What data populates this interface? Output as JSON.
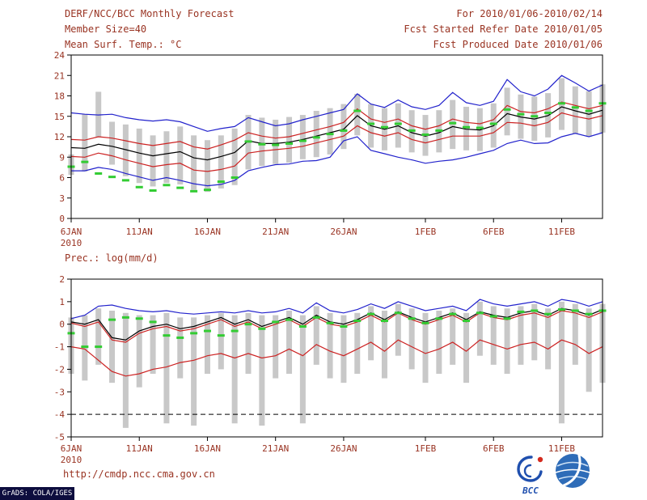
{
  "header": {
    "title_left": "DERF/NCC/BCC Monthly Forecast",
    "period_right": "For 2010/01/06-2010/02/14",
    "member_size": "Member Size=40",
    "refer_date": "Fcst Started Refer Date 2010/01/05",
    "produced_date": "Fcst Produced Date 2010/01/06"
  },
  "footer": {
    "url": "http://cmdp.ncc.cma.gov.cn",
    "grads_stamp": "GrADS: COLA/IGES",
    "bcc_label": "BCC"
  },
  "colors": {
    "annotation": "#993322",
    "frame": "#000000",
    "bar": "#c8c8c8",
    "blue": "#2222cc",
    "red": "#cc2222",
    "black": "#000000",
    "green": "#33cc33",
    "grads_bg": "#0d0d3e",
    "logo_blue": "#1f4fae",
    "logo_red": "#d42a1e"
  },
  "chart_data": [
    {
      "type": "line",
      "title": "Mean Surf. Temp.: °C",
      "ylim": [
        0,
        24
      ],
      "yticks": [
        0,
        3,
        6,
        9,
        12,
        15,
        18,
        21,
        24
      ],
      "xticks": [
        {
          "day": 0,
          "label": "6JAN",
          "sub": "2010"
        },
        {
          "day": 5,
          "label": "11JAN"
        },
        {
          "day": 10,
          "label": "16JAN"
        },
        {
          "day": 15,
          "label": "21JAN"
        },
        {
          "day": 20,
          "label": "26JAN"
        },
        {
          "day": 26,
          "label": "1FEB"
        },
        {
          "day": 31,
          "label": "6FEB"
        },
        {
          "day": 36,
          "label": "11FEB"
        }
      ],
      "bars": [
        [
          6.4,
          9.4
        ],
        [
          6.9,
          15.3
        ],
        [
          11.9,
          18.6
        ],
        [
          7.9,
          14.2
        ],
        [
          6.2,
          13.8
        ],
        [
          5.2,
          13.2
        ],
        [
          4.7,
          12.2
        ],
        [
          5.2,
          12.8
        ],
        [
          5.0,
          13.5
        ],
        [
          4.2,
          12.2
        ],
        [
          3.9,
          11.5
        ],
        [
          4.4,
          12.2
        ],
        [
          4.9,
          13.2
        ],
        [
          7.2,
          15.2
        ],
        [
          7.7,
          14.8
        ],
        [
          8.0,
          14.5
        ],
        [
          8.2,
          14.9
        ],
        [
          8.7,
          15.2
        ],
        [
          9.0,
          15.8
        ],
        [
          9.4,
          16.2
        ],
        [
          10.2,
          16.8
        ],
        [
          12.2,
          18.3
        ],
        [
          10.4,
          16.8
        ],
        [
          10.0,
          16.2
        ],
        [
          10.4,
          16.9
        ],
        [
          9.7,
          15.9
        ],
        [
          9.2,
          15.2
        ],
        [
          9.7,
          15.9
        ],
        [
          10.2,
          17.4
        ],
        [
          10.0,
          16.4
        ],
        [
          9.9,
          16.2
        ],
        [
          10.4,
          16.9
        ],
        [
          12.2,
          19.2
        ],
        [
          11.7,
          18.2
        ],
        [
          11.4,
          17.9
        ],
        [
          11.9,
          18.4
        ],
        [
          13.0,
          20.6
        ],
        [
          12.4,
          19.4
        ],
        [
          12.0,
          18.7
        ],
        [
          12.6,
          19.7
        ]
      ],
      "series": [
        {
          "name": "ensemble-max",
          "color": "#2222cc",
          "values": [
            15.5,
            15.3,
            15.2,
            15.3,
            14.8,
            14.5,
            14.3,
            14.5,
            14.2,
            13.5,
            12.8,
            13.2,
            13.5,
            14.8,
            14.2,
            13.6,
            13.9,
            14.5,
            15.0,
            15.5,
            16.0,
            18.3,
            16.8,
            16.3,
            17.4,
            16.4,
            16.0,
            16.6,
            18.5,
            17.0,
            16.6,
            17.2,
            20.4,
            18.6,
            18.0,
            19.0,
            21.0,
            19.9,
            18.7,
            19.6
          ]
        },
        {
          "name": "ensemble-min",
          "color": "#2222cc",
          "values": [
            7.0,
            7.0,
            7.5,
            7.2,
            6.6,
            6.1,
            5.6,
            6.0,
            5.6,
            5.1,
            4.8,
            5.0,
            5.6,
            7.0,
            7.5,
            7.9,
            8.0,
            8.4,
            8.5,
            9.0,
            11.4,
            12.0,
            10.0,
            9.5,
            9.0,
            8.6,
            8.1,
            8.4,
            8.6,
            9.0,
            9.5,
            10.0,
            11.0,
            11.5,
            11.0,
            11.1,
            12.0,
            12.5,
            12.0,
            12.6
          ]
        },
        {
          "name": "upper-tercile",
          "color": "#cc2222",
          "values": [
            11.6,
            11.5,
            12.0,
            11.8,
            11.4,
            11.0,
            10.7,
            11.0,
            11.3,
            10.5,
            10.2,
            10.8,
            11.5,
            12.6,
            12.1,
            11.8,
            12.0,
            12.5,
            13.0,
            13.5,
            14.1,
            16.1,
            14.6,
            14.1,
            14.6,
            13.6,
            13.1,
            13.6,
            14.6,
            14.1,
            13.9,
            14.5,
            16.6,
            15.7,
            15.5,
            16.1,
            17.1,
            16.6,
            16.1,
            16.6
          ]
        },
        {
          "name": "lower-tercile",
          "color": "#cc2222",
          "values": [
            9.1,
            9.0,
            9.6,
            9.2,
            8.6,
            8.1,
            7.6,
            7.9,
            8.1,
            7.1,
            6.9,
            7.2,
            7.7,
            9.6,
            9.9,
            10.1,
            10.3,
            10.6,
            11.1,
            11.6,
            12.1,
            13.6,
            12.6,
            12.1,
            12.6,
            11.6,
            11.1,
            11.6,
            12.1,
            12.1,
            12.1,
            12.6,
            14.1,
            14.0,
            13.6,
            14.1,
            15.5,
            15.0,
            14.6,
            15.1
          ]
        },
        {
          "name": "ensemble-median",
          "color": "#000000",
          "values": [
            10.4,
            10.3,
            10.9,
            10.6,
            10.1,
            9.6,
            9.2,
            9.5,
            9.8,
            8.9,
            8.6,
            9.1,
            9.7,
            11.4,
            11.0,
            11.0,
            11.2,
            11.6,
            12.1,
            12.6,
            13.1,
            15.1,
            13.6,
            13.1,
            13.6,
            12.6,
            12.1,
            12.6,
            13.5,
            13.1,
            13.0,
            13.6,
            15.4,
            14.9,
            14.6,
            15.1,
            16.4,
            15.8,
            15.3,
            15.9
          ]
        }
      ],
      "dashes": {
        "name": "observation-green-dashes",
        "color": "#33cc33",
        "values": [
          7.6,
          8.3,
          6.6,
          6.1,
          5.6,
          4.6,
          4.1,
          4.9,
          4.5,
          4.0,
          4.2,
          5.4,
          6.0,
          11.3,
          10.9,
          10.8,
          11.0,
          11.4,
          11.9,
          12.4,
          12.9,
          15.8,
          13.9,
          13.4,
          13.9,
          12.9,
          12.3,
          12.9,
          14.0,
          13.4,
          13.3,
          13.9,
          16.0,
          15.3,
          15.0,
          15.5,
          16.9,
          16.3,
          15.8,
          16.9
        ]
      }
    },
    {
      "type": "line",
      "title": "Prec.: log(mm/d)",
      "ylim": [
        -5,
        2
      ],
      "yticks": [
        -5,
        -4,
        -3,
        -2,
        -1,
        0,
        1,
        2
      ],
      "ref_line": -4,
      "xticks": [
        {
          "day": 0,
          "label": "6JAN",
          "sub": "2010"
        },
        {
          "day": 5,
          "label": "11JAN"
        },
        {
          "day": 10,
          "label": "16JAN"
        },
        {
          "day": 15,
          "label": "21JAN"
        },
        {
          "day": 20,
          "label": "26JAN"
        },
        {
          "day": 26,
          "label": "1FEB"
        },
        {
          "day": 31,
          "label": "6FEB"
        },
        {
          "day": 36,
          "label": "11FEB"
        }
      ],
      "bars": [
        [
          -2.2,
          0.3
        ],
        [
          -2.5,
          0.4
        ],
        [
          -1.8,
          0.7
        ],
        [
          -2.6,
          0.6
        ],
        [
          -4.6,
          0.5
        ],
        [
          -2.8,
          0.4
        ],
        [
          -2.2,
          0.4
        ],
        [
          -4.4,
          0.5
        ],
        [
          -2.4,
          0.3
        ],
        [
          -4.5,
          0.3
        ],
        [
          -2.2,
          0.4
        ],
        [
          -2.0,
          0.5
        ],
        [
          -4.4,
          0.4
        ],
        [
          -2.2,
          0.5
        ],
        [
          -4.5,
          0.4
        ],
        [
          -2.4,
          0.4
        ],
        [
          -2.2,
          0.6
        ],
        [
          -4.4,
          0.4
        ],
        [
          -1.8,
          0.8
        ],
        [
          -2.4,
          0.5
        ],
        [
          -2.6,
          0.4
        ],
        [
          -2.2,
          0.5
        ],
        [
          -1.6,
          0.8
        ],
        [
          -2.4,
          0.6
        ],
        [
          -1.4,
          0.9
        ],
        [
          -2.0,
          0.7
        ],
        [
          -2.6,
          0.5
        ],
        [
          -2.2,
          0.6
        ],
        [
          -1.8,
          0.7
        ],
        [
          -2.6,
          0.5
        ],
        [
          -1.4,
          1.0
        ],
        [
          -1.8,
          0.8
        ],
        [
          -2.2,
          0.7
        ],
        [
          -1.8,
          0.8
        ],
        [
          -1.6,
          0.9
        ],
        [
          -2.0,
          0.7
        ],
        [
          -4.4,
          1.0
        ],
        [
          -1.8,
          0.9
        ],
        [
          -3.0,
          0.7
        ],
        [
          -2.6,
          0.9
        ]
      ],
      "series": [
        {
          "name": "ensemble-max",
          "color": "#2222cc",
          "values": [
            0.25,
            0.4,
            0.8,
            0.85,
            0.7,
            0.6,
            0.55,
            0.6,
            0.5,
            0.45,
            0.5,
            0.55,
            0.5,
            0.6,
            0.5,
            0.55,
            0.7,
            0.5,
            0.95,
            0.6,
            0.5,
            0.65,
            0.9,
            0.7,
            1.0,
            0.8,
            0.6,
            0.7,
            0.8,
            0.6,
            1.1,
            0.9,
            0.8,
            0.9,
            1.0,
            0.8,
            1.1,
            1.0,
            0.8,
            1.0
          ]
        },
        {
          "name": "upper-tercile",
          "color": "#cc2222",
          "values": [
            0.05,
            -0.1,
            0.1,
            -0.7,
            -0.8,
            -0.4,
            -0.2,
            -0.1,
            -0.3,
            -0.2,
            0.0,
            0.2,
            -0.1,
            0.1,
            -0.2,
            0.0,
            0.2,
            -0.1,
            0.3,
            0.0,
            -0.1,
            0.1,
            0.4,
            0.1,
            0.5,
            0.2,
            0.0,
            0.2,
            0.4,
            0.1,
            0.5,
            0.3,
            0.2,
            0.4,
            0.5,
            0.3,
            0.6,
            0.5,
            0.3,
            0.55
          ]
        },
        {
          "name": "lower-tercile",
          "color": "#cc2222",
          "values": [
            -1.0,
            -1.1,
            -1.6,
            -2.1,
            -2.3,
            -2.2,
            -2.0,
            -1.9,
            -1.7,
            -1.6,
            -1.4,
            -1.3,
            -1.5,
            -1.3,
            -1.5,
            -1.4,
            -1.1,
            -1.4,
            -0.9,
            -1.2,
            -1.4,
            -1.1,
            -0.8,
            -1.2,
            -0.7,
            -1.0,
            -1.3,
            -1.1,
            -0.8,
            -1.2,
            -0.7,
            -0.9,
            -1.1,
            -0.9,
            -0.8,
            -1.1,
            -0.7,
            -0.9,
            -1.3,
            -1.0
          ]
        },
        {
          "name": "ensemble-mean",
          "color": "#000000",
          "values": [
            0.1,
            0.0,
            0.2,
            -0.6,
            -0.7,
            -0.3,
            -0.1,
            0.0,
            -0.2,
            -0.1,
            0.1,
            0.3,
            0.0,
            0.2,
            -0.1,
            0.1,
            0.3,
            0.0,
            0.4,
            0.1,
            0.0,
            0.2,
            0.5,
            0.2,
            0.55,
            0.3,
            0.1,
            0.3,
            0.5,
            0.2,
            0.55,
            0.4,
            0.3,
            0.5,
            0.6,
            0.4,
            0.7,
            0.6,
            0.4,
            0.65
          ]
        }
      ],
      "dashes": {
        "name": "observation-green-dashes",
        "color": "#33cc33",
        "values": [
          -0.4,
          -1.0,
          -1.0,
          0.2,
          0.3,
          0.25,
          0.1,
          -0.5,
          -0.6,
          -0.4,
          -0.3,
          -0.5,
          -0.3,
          0.0,
          -0.2,
          0.1,
          0.2,
          -0.1,
          0.3,
          0.05,
          -0.1,
          0.15,
          0.45,
          0.15,
          0.5,
          0.25,
          0.05,
          0.25,
          0.45,
          0.15,
          0.5,
          0.35,
          0.25,
          0.55,
          0.6,
          0.45,
          0.65,
          0.6,
          0.45,
          0.6
        ]
      }
    }
  ]
}
